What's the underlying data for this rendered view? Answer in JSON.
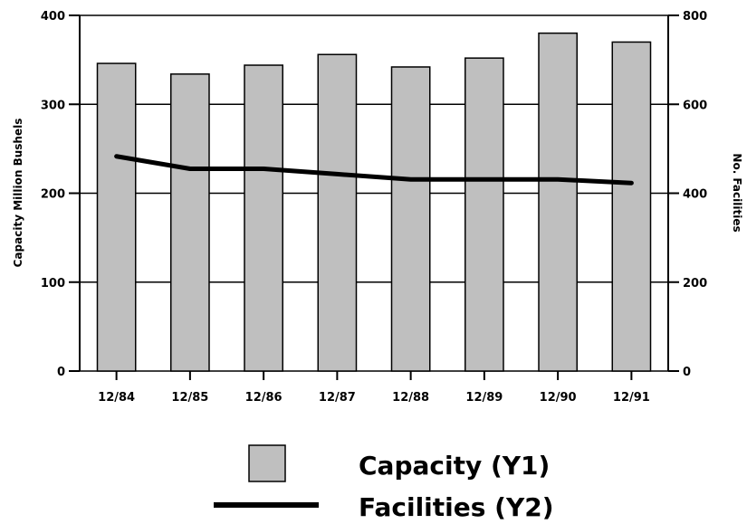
{
  "chart_data": {
    "type": "bar",
    "title": "",
    "categories": [
      "12/84",
      "12/85",
      "12/86",
      "12/87",
      "12/88",
      "12/89",
      "12/90",
      "12/91"
    ],
    "series": [
      {
        "name": "Capacity (Y1)",
        "type": "bar",
        "axis": "y1",
        "values": [
          346,
          334,
          344,
          356,
          342,
          352,
          380,
          370
        ]
      },
      {
        "name": "Facilities (Y2)",
        "type": "line",
        "axis": "y2",
        "values": [
          483,
          455,
          455,
          443,
          431,
          431,
          431,
          423
        ]
      }
    ],
    "y1": {
      "label": "Capacity Million Bushels",
      "range": [
        0,
        400
      ],
      "ticks": [
        0,
        100,
        200,
        300,
        400
      ]
    },
    "y2": {
      "label": "No. Facilities",
      "range": [
        0,
        800
      ],
      "ticks": [
        0,
        200,
        400,
        600,
        800
      ]
    },
    "grid": true,
    "legend": "bottom",
    "colors": {
      "bar_fill": "#bfbfbf",
      "bar_stroke": "#000000",
      "line": "#000000",
      "grid": "#000000"
    }
  }
}
